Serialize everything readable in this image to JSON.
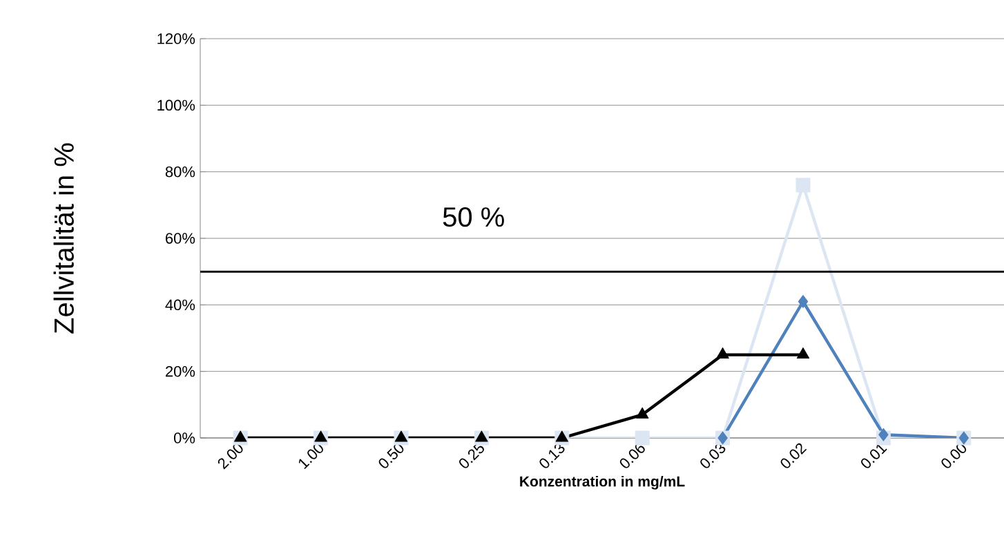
{
  "chart_data": {
    "type": "line",
    "xlabel": "Konzentration  in mg/mL",
    "ylabel": "Zellvitalität in %",
    "categories": [
      "2.00",
      "1.00",
      "0.50",
      "0.25",
      "0.13",
      "0.06",
      "0.03",
      "0.02",
      "0.01",
      "0.00"
    ],
    "series": [
      {
        "color": "#dce6f2",
        "marker": "square",
        "values": [
          0,
          0,
          0,
          0,
          0,
          0,
          0,
          76,
          0,
          0
        ]
      },
      {
        "color": "#4f81bd",
        "marker": "diamond",
        "values": [
          null,
          null,
          null,
          null,
          null,
          null,
          0,
          41,
          1,
          0
        ]
      },
      {
        "color": "#000000",
        "marker": "triangle",
        "values": [
          0,
          0,
          0,
          0,
          0,
          7,
          25,
          25,
          null,
          null
        ]
      }
    ],
    "ylim": [
      0,
      120
    ],
    "yticks": [
      {
        "value": 0,
        "label": "0%"
      },
      {
        "value": 20,
        "label": "20%"
      },
      {
        "value": 40,
        "label": "40%"
      },
      {
        "value": 60,
        "label": "60%"
      },
      {
        "value": 80,
        "label": "80%"
      },
      {
        "value": 100,
        "label": "100%"
      },
      {
        "value": 120,
        "label": "120%"
      }
    ],
    "grid": "y",
    "ref_lines": [
      {
        "axis": "y",
        "value": 50,
        "label": "50 %",
        "color": "#000000"
      }
    ]
  }
}
